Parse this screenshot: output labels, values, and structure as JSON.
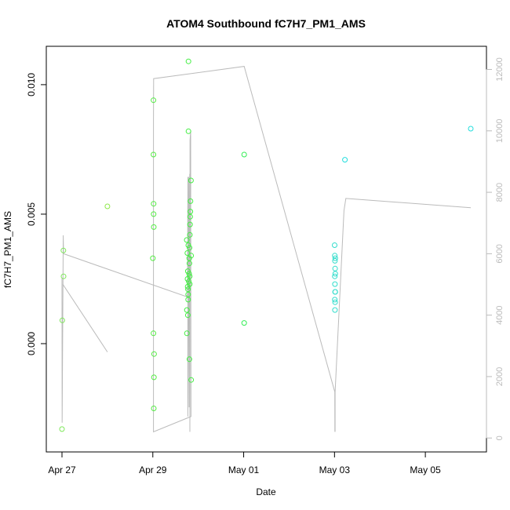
{
  "chart_data": {
    "type": "scatter",
    "title": "ATOM4 Southbound fC7H7_PM1_AMS",
    "xlabel": "Date",
    "ylabel": "fC7H7_PM1_AMS",
    "x_ticks": [
      "Apr 27",
      "Apr 29",
      "May 01",
      "May 03",
      "May 05"
    ],
    "y_ticks": [
      "0.000",
      "0.005",
      "0.010"
    ],
    "y2_ticks": [
      "0",
      "2000",
      "4000",
      "6000",
      "8000",
      "10000",
      "12000"
    ],
    "xlim": [
      "2016-04-27 00:00",
      "2016-05-06 00:00"
    ],
    "ylim": [
      -0.004,
      0.0113
    ],
    "y2lim": [
      -300,
      12600
    ],
    "colors": {
      "frame": "#000000",
      "line": "#bbbbbb",
      "right_axis": "#bbbbbb"
    },
    "points": [
      {
        "x": "2016-04-27 00:00",
        "y": -0.0033,
        "color": "#7ee85a"
      },
      {
        "x": "2016-04-27 00:10",
        "y": 0.0009,
        "color": "#7ee85a"
      },
      {
        "x": "2016-04-27 00:50",
        "y": 0.0026,
        "color": "#7ee85a"
      },
      {
        "x": "2016-04-27 00:45",
        "y": 0.0036,
        "color": "#7ee85a"
      },
      {
        "x": "2016-04-28 00:00",
        "y": 0.0053,
        "color": "#8ee84a"
      },
      {
        "x": "2016-04-29 00:00",
        "y": 0.0033,
        "color": "#55ee44"
      },
      {
        "x": "2016-04-29 00:20",
        "y": 0.0094,
        "color": "#55ee44"
      },
      {
        "x": "2016-04-29 00:20",
        "y": 0.0073,
        "color": "#55ee44"
      },
      {
        "x": "2016-04-29 00:25",
        "y": 0.0054,
        "color": "#55ee44"
      },
      {
        "x": "2016-04-29 00:25",
        "y": 0.005,
        "color": "#55ee44"
      },
      {
        "x": "2016-04-29 00:30",
        "y": 0.0045,
        "color": "#55ee44"
      },
      {
        "x": "2016-04-29 00:20",
        "y": 0.0004,
        "color": "#55ee44"
      },
      {
        "x": "2016-04-29 00:40",
        "y": -0.0004,
        "color": "#55ee44"
      },
      {
        "x": "2016-04-29 00:35",
        "y": -0.0013,
        "color": "#55ee44"
      },
      {
        "x": "2016-04-29 00:30",
        "y": -0.0025,
        "color": "#55ee44"
      },
      {
        "x": "2016-04-29 18:50",
        "y": 0.0109,
        "color": "#44ee44"
      },
      {
        "x": "2016-04-29 18:50",
        "y": 0.0082,
        "color": "#44ee44"
      },
      {
        "x": "2016-04-29 17:55",
        "y": 0.004,
        "color": "#44ee44"
      },
      {
        "x": "2016-04-29 18:00",
        "y": 0.0013,
        "color": "#44ee44"
      },
      {
        "x": "2016-04-29 18:00",
        "y": 0.0004,
        "color": "#44ee44"
      },
      {
        "x": "2016-04-29 18:30",
        "y": 0.0011,
        "color": "#44ee44"
      },
      {
        "x": "2016-04-29 18:15",
        "y": 0.0035,
        "color": "#44ee44"
      },
      {
        "x": "2016-04-29 18:30",
        "y": 0.0028,
        "color": "#44ee44"
      },
      {
        "x": "2016-04-29 18:20",
        "y": 0.0025,
        "color": "#44ee44"
      },
      {
        "x": "2016-04-29 18:25",
        "y": 0.0022,
        "color": "#44ee44"
      },
      {
        "x": "2016-04-29 18:35",
        "y": 0.0021,
        "color": "#44ee44"
      },
      {
        "x": "2016-04-29 18:40",
        "y": 0.0019,
        "color": "#44ee44"
      },
      {
        "x": "2016-04-29 18:40",
        "y": 0.0017,
        "color": "#44ee44"
      },
      {
        "x": "2016-04-29 18:45",
        "y": 0.0038,
        "color": "#44ee44"
      },
      {
        "x": "2016-04-29 19:00",
        "y": 0.0024,
        "color": "#44ee44"
      },
      {
        "x": "2016-04-29 19:10",
        "y": 0.0027,
        "color": "#44ee44"
      },
      {
        "x": "2016-04-29 19:30",
        "y": 0.0023,
        "color": "#44ee44"
      },
      {
        "x": "2016-04-29 19:15",
        "y": 0.0033,
        "color": "#44ee44"
      },
      {
        "x": "2016-04-29 19:20",
        "y": 0.0031,
        "color": "#44ee44"
      },
      {
        "x": "2016-04-29 19:25",
        "y": 0.0037,
        "color": "#44ee44"
      },
      {
        "x": "2016-04-29 19:35",
        "y": 0.0042,
        "color": "#44ee44"
      },
      {
        "x": "2016-04-29 19:40",
        "y": 0.0046,
        "color": "#44ee44"
      },
      {
        "x": "2016-04-29 19:45",
        "y": 0.0049,
        "color": "#44ee44"
      },
      {
        "x": "2016-04-29 19:50",
        "y": 0.0051,
        "color": "#44ee44"
      },
      {
        "x": "2016-04-29 19:55",
        "y": 0.0055,
        "color": "#44ee44"
      },
      {
        "x": "2016-04-29 19:30",
        "y": 0.0026,
        "color": "#44ee44"
      },
      {
        "x": "2016-04-29 19:20",
        "y": -0.0006,
        "color": "#44ee44"
      },
      {
        "x": "2016-04-29 20:10",
        "y": 0.0063,
        "color": "#44ee44"
      },
      {
        "x": "2016-04-29 20:15",
        "y": 0.0034,
        "color": "#44ee44"
      },
      {
        "x": "2016-04-29 20:15",
        "y": -0.0014,
        "color": "#44ee44"
      },
      {
        "x": "2016-05-01 00:15",
        "y": 0.0073,
        "color": "#33ee55"
      },
      {
        "x": "2016-05-01 00:15",
        "y": 0.0008,
        "color": "#33ee55"
      },
      {
        "x": "2016-05-03 00:05",
        "y": 0.0038,
        "color": "#33ddcc"
      },
      {
        "x": "2016-05-03 00:10",
        "y": 0.0034,
        "color": "#33ddcc"
      },
      {
        "x": "2016-05-03 00:15",
        "y": 0.0032,
        "color": "#33ddcc"
      },
      {
        "x": "2016-05-03 00:20",
        "y": 0.0029,
        "color": "#33ddcc"
      },
      {
        "x": "2016-05-03 00:25",
        "y": 0.0027,
        "color": "#33ddcc"
      },
      {
        "x": "2016-05-03 00:10",
        "y": 0.0026,
        "color": "#33ddcc"
      },
      {
        "x": "2016-05-03 00:15",
        "y": 0.0023,
        "color": "#33ddcc"
      },
      {
        "x": "2016-05-03 00:20",
        "y": 0.002,
        "color": "#33ddcc"
      },
      {
        "x": "2016-05-03 00:25",
        "y": 0.002,
        "color": "#33ddcc"
      },
      {
        "x": "2016-05-03 00:10",
        "y": 0.0017,
        "color": "#33ddcc"
      },
      {
        "x": "2016-05-03 00:20",
        "y": 0.0016,
        "color": "#33ddcc"
      },
      {
        "x": "2016-05-03 00:15",
        "y": 0.0013,
        "color": "#33ddcc"
      },
      {
        "x": "2016-05-03 00:25",
        "y": 0.0033,
        "color": "#33ddcc"
      },
      {
        "x": "2016-05-03 05:30",
        "y": 0.0071,
        "color": "#22dddd"
      },
      {
        "x": "2016-05-06 00:00",
        "y": 0.0083,
        "color": "#22dddd"
      }
    ],
    "line": [
      {
        "x": "2016-04-27 00:00",
        "y2": 5200
      },
      {
        "x": "2016-04-27 00:05",
        "y2": 500
      },
      {
        "x": "2016-04-27 00:30",
        "y2": 4800
      },
      {
        "x": "2016-04-27 00:40",
        "y2": 6600
      },
      {
        "x": "2016-04-27 00:50",
        "y2": 6000
      },
      {
        "x": "2016-04-29 18:00",
        "y2": 4600
      },
      {
        "x": "2016-04-29 18:20",
        "y2": 4700
      },
      {
        "x": "2016-04-29 18:30",
        "y2": 8500
      },
      {
        "x": "2016-04-29 18:30",
        "y2": 700
      },
      {
        "x": "2016-04-29 19:00",
        "y2": 8500
      },
      {
        "x": "2016-04-29 19:10",
        "y2": 1000
      },
      {
        "x": "2016-04-29 19:30",
        "y2": 8600
      },
      {
        "x": "2016-04-29 19:35",
        "y2": 200
      },
      {
        "x": "2016-04-29 19:40",
        "y2": 9700
      },
      {
        "x": "2016-04-29 20:00",
        "y2": 10000
      },
      {
        "x": "2016-04-29 20:10",
        "y2": 700
      },
      {
        "x": "2016-04-29 00:20",
        "y2": 200
      },
      {
        "x": "2016-04-29 00:20",
        "y2": 10300
      },
      {
        "x": "2016-04-29 00:25",
        "y2": 11700
      },
      {
        "x": "2016-05-01 00:15",
        "y2": 12100
      },
      {
        "x": "2016-05-03 00:10",
        "y2": 1500
      },
      {
        "x": "2016-05-03 00:12",
        "y2": 200
      },
      {
        "x": "2016-05-03 00:15",
        "y2": 1500
      },
      {
        "x": "2016-05-03 00:18",
        "y2": 200
      },
      {
        "x": "2016-05-03 00:20",
        "y2": 1500
      },
      {
        "x": "2016-05-03 05:00",
        "y2": 7400
      },
      {
        "x": "2016-05-03 06:00",
        "y2": 7800
      },
      {
        "x": "2016-05-06 00:00",
        "y2": 7500
      }
    ],
    "line_extra": [
      {
        "x": "2016-04-27 00:30",
        "y2": 5000
      },
      {
        "x": "2016-04-28 00:00",
        "y2": 2800
      }
    ]
  }
}
